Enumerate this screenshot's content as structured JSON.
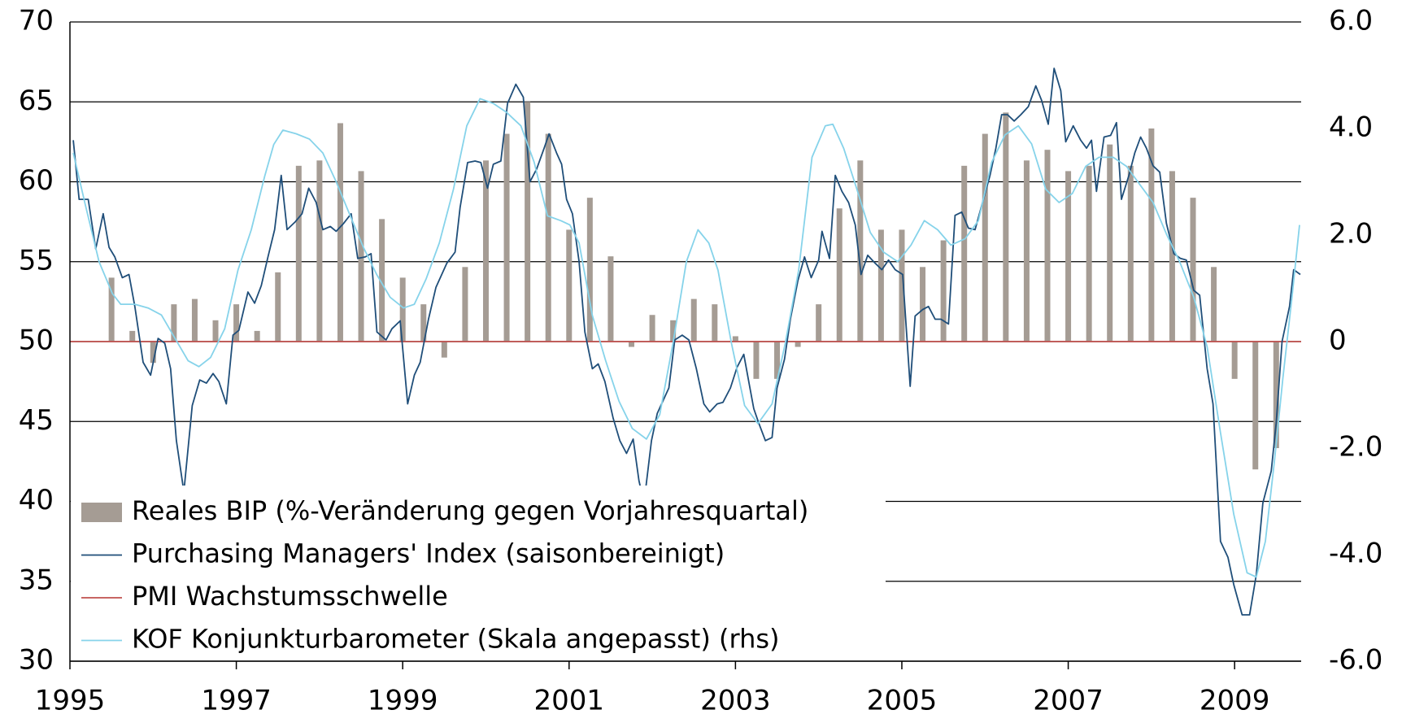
{
  "chart_data": {
    "type": "combo",
    "xlim": [
      1995,
      2009.8
    ],
    "xticks": [
      1995,
      1997,
      1999,
      2001,
      2003,
      2005,
      2007,
      2009
    ],
    "ylim": [
      30,
      70
    ],
    "yticks": [
      30,
      35,
      40,
      45,
      50,
      55,
      60,
      65,
      70
    ],
    "y2lim": [
      -6,
      6
    ],
    "y2ticks": [
      {
        "value": -6,
        "label": "-6.0"
      },
      {
        "value": -4,
        "label": "-4.0"
      },
      {
        "value": -2,
        "label": "-2.0"
      },
      0,
      {
        "value": 2,
        "label": "2.0"
      },
      {
        "value": 4,
        "label": "4.0"
      },
      {
        "value": 6,
        "label": "6.0"
      }
    ],
    "grid": true,
    "legend": "lower left",
    "series": [
      {
        "name": "Reales BIP (%-Veränderung gegen Vorjahresquartal)",
        "type": "bar",
        "axis": "y2",
        "color": "#a59c94",
        "x": [
          1995.5,
          1995.75,
          1996,
          1996.25,
          1996.5,
          1996.75,
          1997,
          1997.25,
          1997.5,
          1997.75,
          1998,
          1998.25,
          1998.5,
          1998.75,
          1999,
          1999.25,
          1999.5,
          1999.75,
          2000,
          2000.25,
          2000.5,
          2000.75,
          2001,
          2001.25,
          2001.5,
          2001.75,
          2002,
          2002.25,
          2002.5,
          2002.75,
          2003,
          2003.25,
          2003.5,
          2003.75,
          2004,
          2004.25,
          2004.5,
          2004.75,
          2005,
          2005.25,
          2005.5,
          2005.75,
          2006,
          2006.25,
          2006.5,
          2006.75,
          2007,
          2007.25,
          2007.5,
          2007.75,
          2008,
          2008.25,
          2008.5,
          2008.75,
          2009,
          2009.25,
          2009.5
        ],
        "values": [
          1.2,
          0.2,
          -0.4,
          0.7,
          0.8,
          0.4,
          0.7,
          0.2,
          1.3,
          3.3,
          3.4,
          4.1,
          3.2,
          2.3,
          1.2,
          0.7,
          -0.3,
          1.4,
          3.4,
          3.9,
          4.5,
          3.9,
          2.1,
          2.7,
          1.6,
          -0.1,
          0.5,
          0.4,
          0.8,
          0.7,
          0.1,
          -0.7,
          -0.7,
          -0.1,
          0.7,
          2.5,
          3.4,
          2.1,
          2.1,
          1.4,
          1.9,
          3.3,
          3.9,
          4.3,
          3.4,
          3.6,
          3.2,
          3.3,
          3.7,
          3.3,
          4.0,
          3.2,
          2.7,
          1.4,
          -0.7,
          -2.4,
          -2.0
        ]
      },
      {
        "name": "Purchasing Managers' Index (saisonbereinigt)",
        "type": "line",
        "axis": "y",
        "color": "#1f4e79",
        "x": [
          1995.04,
          1995.11,
          1995.22,
          1995.31,
          1995.4,
          1995.47,
          1995.54,
          1995.63,
          1995.71,
          1995.78,
          1995.88,
          1995.97,
          1996.06,
          1996.14,
          1996.21,
          1996.28,
          1996.37,
          1996.47,
          1996.56,
          1996.64,
          1996.72,
          1996.79,
          1996.88,
          1996.96,
          1997.03,
          1997.14,
          1997.22,
          1997.3,
          1997.38,
          1997.46,
          1997.54,
          1997.61,
          1997.71,
          1997.79,
          1997.87,
          1997.96,
          1998.04,
          1998.13,
          1998.2,
          1998.29,
          1998.38,
          1998.46,
          1998.55,
          1998.62,
          1998.69,
          1998.8,
          1998.87,
          1998.97,
          1999.06,
          1999.14,
          1999.21,
          1999.31,
          1999.4,
          1999.53,
          1999.63,
          1999.69,
          1999.78,
          1999.87,
          1999.94,
          2000.02,
          2000.09,
          2000.18,
          2000.26,
          2000.36,
          2000.45,
          2000.53,
          2000.61,
          2000.7,
          2000.76,
          2000.85,
          2000.91,
          2000.97,
          2001.04,
          2001.12,
          2001.19,
          2001.28,
          2001.35,
          2001.43,
          2001.53,
          2001.61,
          2001.69,
          2001.77,
          2001.84,
          2001.9,
          2001.99,
          2002.06,
          2002.12,
          2002.2,
          2002.27,
          2002.36,
          2002.44,
          2002.53,
          2002.62,
          2002.69,
          2002.78,
          2002.85,
          2002.94,
          2003.02,
          2003.1,
          2003.17,
          2003.22,
          2003.28,
          2003.36,
          2003.44,
          2003.5,
          2003.59,
          2003.66,
          2003.75,
          2003.83,
          2003.91,
          2004.0,
          2004.04,
          2004.13,
          2004.2,
          2004.28,
          2004.36,
          2004.44,
          2004.51,
          2004.59,
          2004.68,
          2004.76,
          2004.84,
          2004.92,
          2005.01,
          2005.1,
          2005.16,
          2005.25,
          2005.32,
          2005.4,
          2005.47,
          2005.56,
          2005.64,
          2005.72,
          2005.8,
          2005.88,
          2005.97,
          2006.06,
          2006.13,
          2006.2,
          2006.27,
          2006.35,
          2006.43,
          2006.52,
          2006.61,
          2006.68,
          2006.76,
          2006.83,
          2006.91,
          2006.97,
          2007.06,
          2007.15,
          2007.22,
          2007.28,
          2007.34,
          2007.43,
          2007.51,
          2007.58,
          2007.64,
          2007.73,
          2007.8,
          2007.87,
          2007.94,
          2008.02,
          2008.1,
          2008.18,
          2008.27,
          2008.35,
          2008.42,
          2008.51,
          2008.58,
          2008.67,
          2008.74,
          2008.83,
          2008.92,
          2008.99,
          2009.09,
          2009.18,
          2009.26,
          2009.34,
          2009.44,
          2009.5,
          2009.57,
          2009.66,
          2009.71,
          2009.79
        ],
        "values": [
          62.6,
          58.9,
          58.9,
          55.8,
          58,
          55.9,
          55.3,
          54,
          54.2,
          52.2,
          48.7,
          47.9,
          50.2,
          49.9,
          48.3,
          43.8,
          40.6,
          46,
          47.6,
          47.4,
          48,
          47.5,
          46.1,
          50.4,
          50.7,
          53.1,
          52.4,
          53.5,
          55.3,
          57,
          60.4,
          57,
          57.5,
          58,
          59.6,
          58.7,
          57,
          57.2,
          56.9,
          57.4,
          58,
          55.2,
          55.3,
          55.5,
          50.6,
          50.1,
          50.8,
          51.3,
          46.1,
          47.9,
          48.7,
          51.4,
          53.4,
          54.9,
          55.6,
          58.4,
          61.2,
          61.3,
          61.2,
          59.6,
          61.1,
          61.3,
          64.9,
          66.1,
          65.3,
          60,
          60.8,
          62.1,
          63,
          61.8,
          61.1,
          58.9,
          58,
          55,
          50.6,
          48.3,
          48.6,
          47.5,
          45.2,
          43.8,
          43,
          43.9,
          41.3,
          39.9,
          43.8,
          45.5,
          46.2,
          47.1,
          50.1,
          50.4,
          50.1,
          48.3,
          46.1,
          45.6,
          46.1,
          46.2,
          47.1,
          48.4,
          49.2,
          47.2,
          45.8,
          44.9,
          43.8,
          44,
          47.1,
          48.9,
          51.4,
          53.8,
          55.3,
          54,
          55.1,
          56.9,
          55.2,
          60.4,
          59.4,
          58.7,
          57.3,
          54.2,
          55.4,
          54.9,
          54.5,
          55.1,
          54.5,
          54.2,
          47.2,
          51.6,
          52,
          52.2,
          51.4,
          51.4,
          51.1,
          57.9,
          58.1,
          57.1,
          57,
          58.7,
          60.4,
          62.1,
          64.2,
          64.2,
          63.8,
          64.2,
          64.7,
          66,
          65.1,
          63.6,
          67.1,
          65.7,
          62.5,
          63.5,
          62.6,
          62.1,
          62.6,
          59.4,
          62.8,
          62.9,
          63.7,
          58.9,
          60.4,
          61.8,
          62.8,
          62.1,
          61,
          60.6,
          57.4,
          55.5,
          55.2,
          55.1,
          53.2,
          52.9,
          48.3,
          46.1,
          37.5,
          36.5,
          34.8,
          32.9,
          32.9,
          35.4,
          39.9,
          41.9,
          44.9,
          50,
          52.2,
          54.5,
          54.2
        ]
      },
      {
        "name": "PMI Wachstumsschwelle",
        "type": "hline",
        "axis": "y",
        "color": "#c0504d",
        "value": 50
      },
      {
        "name": "KOF Konjunkturbarometer (Skala angepasst) (rhs)",
        "type": "line",
        "axis": "y2",
        "color": "#86d3ea",
        "x": [
          1995.04,
          1995.18,
          1995.35,
          1995.51,
          1995.61,
          1995.78,
          1995.94,
          1996.1,
          1996.26,
          1996.42,
          1996.55,
          1996.69,
          1996.86,
          1997.02,
          1997.18,
          1997.34,
          1997.45,
          1997.56,
          1997.72,
          1997.88,
          1998.04,
          1998.2,
          1998.37,
          1998.53,
          1998.69,
          1998.85,
          1999.01,
          1999.14,
          1999.28,
          1999.44,
          1999.61,
          1999.77,
          1999.93,
          2000.09,
          2000.25,
          2000.42,
          2000.58,
          2000.74,
          2000.9,
          2001.01,
          2001.12,
          2001.28,
          2001.44,
          2001.6,
          2001.76,
          2001.93,
          2002.09,
          2002.25,
          2002.41,
          2002.55,
          2002.68,
          2002.79,
          2002.95,
          2003.11,
          2003.27,
          2003.44,
          2003.6,
          2003.76,
          2003.92,
          2004.08,
          2004.17,
          2004.3,
          2004.46,
          2004.62,
          2004.78,
          2004.95,
          2005.11,
          2005.27,
          2005.43,
          2005.59,
          2005.76,
          2005.92,
          2006.08,
          2006.24,
          2006.4,
          2006.56,
          2006.73,
          2006.89,
          2007.05,
          2007.21,
          2007.37,
          2007.54,
          2007.7,
          2007.86,
          2008.02,
          2008.18,
          2008.34,
          2008.51,
          2008.67,
          2008.83,
          2008.99,
          2009.15,
          2009.26,
          2009.37,
          2009.48,
          2009.58,
          2009.69,
          2009.78
        ],
        "values": [
          3.54,
          2.6,
          1.5,
          0.9,
          0.7,
          0.7,
          0.63,
          0.5,
          0.07,
          -0.36,
          -0.47,
          -0.3,
          0.24,
          1.34,
          2.1,
          3.1,
          3.7,
          3.97,
          3.9,
          3.8,
          3.54,
          3.0,
          2.36,
          1.76,
          1.25,
          0.83,
          0.63,
          0.7,
          1.17,
          1.85,
          2.86,
          4.05,
          4.56,
          4.47,
          4.3,
          4.05,
          3.37,
          2.36,
          2.27,
          2.19,
          1.85,
          0.49,
          -0.36,
          -1.12,
          -1.63,
          -1.83,
          -1.37,
          -0.02,
          1.5,
          2.1,
          1.85,
          1.34,
          -0.02,
          -1.2,
          -1.54,
          -1.17,
          -0.02,
          1.34,
          3.46,
          4.05,
          4.08,
          3.63,
          2.86,
          2.05,
          1.68,
          1.5,
          1.81,
          2.27,
          2.1,
          1.81,
          1.93,
          2.27,
          3.37,
          3.88,
          4.05,
          3.71,
          2.86,
          2.61,
          2.78,
          3.29,
          3.46,
          3.46,
          3.29,
          2.95,
          2.61,
          2.02,
          1.5,
          0.83,
          -0.1,
          -1.71,
          -3.24,
          -4.34,
          -4.42,
          -3.75,
          -2.22,
          -0.69,
          0.83,
          2.19
        ]
      }
    ]
  }
}
